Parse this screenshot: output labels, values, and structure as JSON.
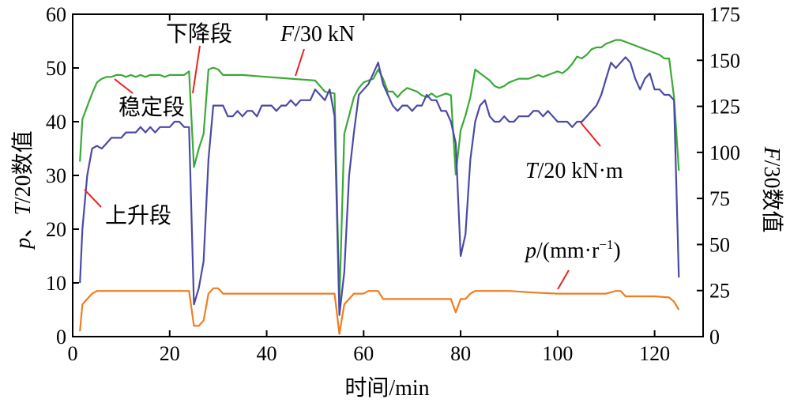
{
  "chart_data": {
    "type": "line",
    "xlabel": "时间/min",
    "ylabel_left": {
      "italic": "p",
      "rest1": "、",
      "italic2": "T",
      "rest2": "/20数值"
    },
    "ylabel_right": {
      "italic": "F",
      "rest": "/30数值"
    },
    "xlim": [
      0,
      130
    ],
    "ylim_left": [
      0,
      60
    ],
    "ylim_right": [
      0,
      175
    ],
    "xticks": [
      0,
      20,
      40,
      60,
      80,
      100,
      120
    ],
    "yticks_left": [
      0,
      10,
      20,
      30,
      40,
      50,
      60
    ],
    "yticks_right": [
      0,
      25,
      50,
      75,
      100,
      125,
      150,
      175
    ],
    "annotations": {
      "descent": "下降段",
      "steady": "稳定段",
      "ascent": "上升段",
      "F_label": {
        "italic": "F",
        "rest": "/30 kN"
      },
      "T_label": {
        "italic": "T",
        "rest": "/20 kN·m"
      },
      "p_label": {
        "italic": "p",
        "rest": "/(mm·r",
        "sup": "−1",
        "end": ")"
      }
    },
    "colors": {
      "F": "#3aaa35",
      "T": "#4b49a6",
      "p": "#ef7d22",
      "leader": "#e8241c"
    },
    "series": [
      {
        "key": "F",
        "axis": "right",
        "points": [
          [
            1.5,
            95
          ],
          [
            2,
            118
          ],
          [
            3,
            125
          ],
          [
            4,
            132
          ],
          [
            5,
            138
          ],
          [
            6,
            140
          ],
          [
            7,
            141
          ],
          [
            8,
            141
          ],
          [
            9,
            142
          ],
          [
            10,
            142
          ],
          [
            11,
            141
          ],
          [
            12,
            142
          ],
          [
            13,
            141
          ],
          [
            14,
            142
          ],
          [
            15,
            141
          ],
          [
            16,
            142
          ],
          [
            17,
            142
          ],
          [
            18,
            142
          ],
          [
            19,
            141
          ],
          [
            20,
            142
          ],
          [
            21,
            142
          ],
          [
            22,
            142
          ],
          [
            23,
            142
          ],
          [
            24,
            144
          ],
          [
            25,
            92
          ],
          [
            26,
            102
          ],
          [
            27,
            110
          ],
          [
            28,
            145
          ],
          [
            29,
            146
          ],
          [
            30,
            145
          ],
          [
            31,
            142
          ],
          [
            35,
            142
          ],
          [
            40,
            141
          ],
          [
            45,
            140
          ],
          [
            50,
            139
          ],
          [
            51,
            136
          ],
          [
            52,
            133
          ],
          [
            54,
            132
          ],
          [
            55,
            18
          ],
          [
            56,
            110
          ],
          [
            57,
            120
          ],
          [
            58,
            130
          ],
          [
            59,
            135
          ],
          [
            60,
            138
          ],
          [
            61,
            139
          ],
          [
            62,
            140
          ],
          [
            63,
            145
          ],
          [
            64,
            140
          ],
          [
            65,
            133
          ],
          [
            66,
            133
          ],
          [
            67,
            130
          ],
          [
            68,
            133
          ],
          [
            69,
            135
          ],
          [
            70,
            134
          ],
          [
            71,
            133
          ],
          [
            72,
            131
          ],
          [
            73,
            130
          ],
          [
            74,
            132
          ],
          [
            75,
            130
          ],
          [
            76,
            131
          ],
          [
            77,
            132
          ],
          [
            78,
            131
          ],
          [
            79,
            88
          ],
          [
            80,
            112
          ],
          [
            81,
            120
          ],
          [
            82,
            130
          ],
          [
            83,
            145
          ],
          [
            84,
            143
          ],
          [
            85,
            141
          ],
          [
            86,
            139
          ],
          [
            87,
            136
          ],
          [
            88,
            135
          ],
          [
            89,
            136
          ],
          [
            90,
            138
          ],
          [
            91,
            139
          ],
          [
            92,
            140
          ],
          [
            93,
            140
          ],
          [
            94,
            140
          ],
          [
            95,
            141
          ],
          [
            96,
            142
          ],
          [
            97,
            141
          ],
          [
            98,
            142
          ],
          [
            99,
            143
          ],
          [
            100,
            144
          ],
          [
            101,
            143
          ],
          [
            102,
            145
          ],
          [
            103,
            148
          ],
          [
            104,
            152
          ],
          [
            105,
            151
          ],
          [
            106,
            153
          ],
          [
            107,
            156
          ],
          [
            108,
            157
          ],
          [
            109,
            157
          ],
          [
            110,
            159
          ],
          [
            111,
            160
          ],
          [
            112,
            161
          ],
          [
            113,
            161
          ],
          [
            114,
            160
          ],
          [
            115,
            159
          ],
          [
            116,
            158
          ],
          [
            117,
            157
          ],
          [
            118,
            156
          ],
          [
            119,
            155
          ],
          [
            120,
            154
          ],
          [
            121,
            153
          ],
          [
            122,
            151
          ],
          [
            123,
            151
          ],
          [
            124,
            130
          ],
          [
            125,
            90
          ]
        ]
      },
      {
        "key": "T",
        "axis": "left",
        "points": [
          [
            1.5,
            10
          ],
          [
            2,
            20
          ],
          [
            3,
            30
          ],
          [
            4,
            35
          ],
          [
            5,
            35.5
          ],
          [
            6,
            35
          ],
          [
            7,
            36
          ],
          [
            8,
            37
          ],
          [
            9,
            37
          ],
          [
            10,
            37
          ],
          [
            11,
            38
          ],
          [
            12,
            38
          ],
          [
            13,
            38
          ],
          [
            14,
            39
          ],
          [
            15,
            38
          ],
          [
            16,
            39
          ],
          [
            17,
            38
          ],
          [
            18,
            39
          ],
          [
            19,
            39
          ],
          [
            20,
            39
          ],
          [
            21,
            40
          ],
          [
            22,
            40
          ],
          [
            23,
            39
          ],
          [
            24,
            39
          ],
          [
            25,
            6
          ],
          [
            26,
            9
          ],
          [
            27,
            14
          ],
          [
            28,
            33
          ],
          [
            29,
            43
          ],
          [
            30,
            43
          ],
          [
            31,
            43
          ],
          [
            32,
            41
          ],
          [
            33,
            41
          ],
          [
            34,
            42
          ],
          [
            35,
            41
          ],
          [
            36,
            42
          ],
          [
            37,
            42
          ],
          [
            38,
            41
          ],
          [
            39,
            43
          ],
          [
            40,
            43
          ],
          [
            41,
            43
          ],
          [
            42,
            42
          ],
          [
            43,
            43
          ],
          [
            44,
            43
          ],
          [
            45,
            44
          ],
          [
            46,
            43
          ],
          [
            47,
            44
          ],
          [
            48,
            44
          ],
          [
            49,
            44
          ],
          [
            50,
            46
          ],
          [
            51,
            45
          ],
          [
            52,
            44
          ],
          [
            53,
            46
          ],
          [
            54,
            41
          ],
          [
            55,
            4
          ],
          [
            56,
            12
          ],
          [
            57,
            30
          ],
          [
            58,
            38
          ],
          [
            59,
            45
          ],
          [
            60,
            46
          ],
          [
            61,
            47
          ],
          [
            62,
            49
          ],
          [
            63,
            51
          ],
          [
            64,
            47
          ],
          [
            65,
            45
          ],
          [
            66,
            43
          ],
          [
            67,
            42
          ],
          [
            68,
            43
          ],
          [
            69,
            43
          ],
          [
            70,
            42
          ],
          [
            71,
            43
          ],
          [
            72,
            43
          ],
          [
            73,
            45
          ],
          [
            74,
            44
          ],
          [
            75,
            44
          ],
          [
            76,
            42
          ],
          [
            77,
            42
          ],
          [
            78,
            40
          ],
          [
            79,
            36
          ],
          [
            80,
            15
          ],
          [
            81,
            19
          ],
          [
            82,
            33
          ],
          [
            83,
            40
          ],
          [
            84,
            43
          ],
          [
            85,
            44
          ],
          [
            86,
            41
          ],
          [
            87,
            40
          ],
          [
            88,
            40
          ],
          [
            89,
            41
          ],
          [
            90,
            40
          ],
          [
            91,
            40
          ],
          [
            92,
            41
          ],
          [
            93,
            41
          ],
          [
            94,
            41
          ],
          [
            95,
            42
          ],
          [
            96,
            42
          ],
          [
            97,
            41
          ],
          [
            98,
            42
          ],
          [
            99,
            41
          ],
          [
            100,
            40
          ],
          [
            101,
            40
          ],
          [
            102,
            40
          ],
          [
            103,
            39
          ],
          [
            104,
            40
          ],
          [
            105,
            40
          ],
          [
            106,
            41
          ],
          [
            107,
            42
          ],
          [
            108,
            43
          ],
          [
            109,
            45
          ],
          [
            110,
            48
          ],
          [
            111,
            51
          ],
          [
            112,
            50
          ],
          [
            113,
            51
          ],
          [
            114,
            52
          ],
          [
            115,
            51
          ],
          [
            116,
            48
          ],
          [
            117,
            46
          ],
          [
            118,
            48
          ],
          [
            119,
            49
          ],
          [
            120,
            46
          ],
          [
            121,
            46
          ],
          [
            122,
            45
          ],
          [
            123,
            45
          ],
          [
            124,
            44
          ],
          [
            125,
            11
          ]
        ]
      },
      {
        "key": "p",
        "axis": "left",
        "points": [
          [
            1.5,
            1
          ],
          [
            2,
            6
          ],
          [
            3,
            7
          ],
          [
            4,
            8
          ],
          [
            5,
            8.5
          ],
          [
            10,
            8.5
          ],
          [
            15,
            8.5
          ],
          [
            20,
            8.5
          ],
          [
            24,
            8.5
          ],
          [
            25,
            2
          ],
          [
            26,
            2
          ],
          [
            27,
            3
          ],
          [
            28,
            8
          ],
          [
            29,
            9
          ],
          [
            30,
            9
          ],
          [
            31,
            8
          ],
          [
            35,
            8
          ],
          [
            40,
            8
          ],
          [
            45,
            8
          ],
          [
            50,
            8
          ],
          [
            54,
            8
          ],
          [
            55,
            0.5
          ],
          [
            56,
            6
          ],
          [
            57,
            7
          ],
          [
            58,
            8
          ],
          [
            59,
            8
          ],
          [
            60,
            8
          ],
          [
            61,
            8.5
          ],
          [
            62,
            8.5
          ],
          [
            63,
            8.5
          ],
          [
            64,
            7
          ],
          [
            70,
            7
          ],
          [
            75,
            7
          ],
          [
            78,
            7
          ],
          [
            79,
            4.5
          ],
          [
            80,
            7
          ],
          [
            81,
            7
          ],
          [
            82,
            8
          ],
          [
            83,
            8.5
          ],
          [
            85,
            8.5
          ],
          [
            90,
            8.5
          ],
          [
            95,
            8.2
          ],
          [
            100,
            8
          ],
          [
            105,
            8
          ],
          [
            110,
            8
          ],
          [
            112,
            8.5
          ],
          [
            113,
            8.5
          ],
          [
            114,
            7.5
          ],
          [
            120,
            7.5
          ],
          [
            123,
            7.3
          ],
          [
            124,
            6.5
          ],
          [
            125,
            5
          ]
        ]
      }
    ]
  }
}
